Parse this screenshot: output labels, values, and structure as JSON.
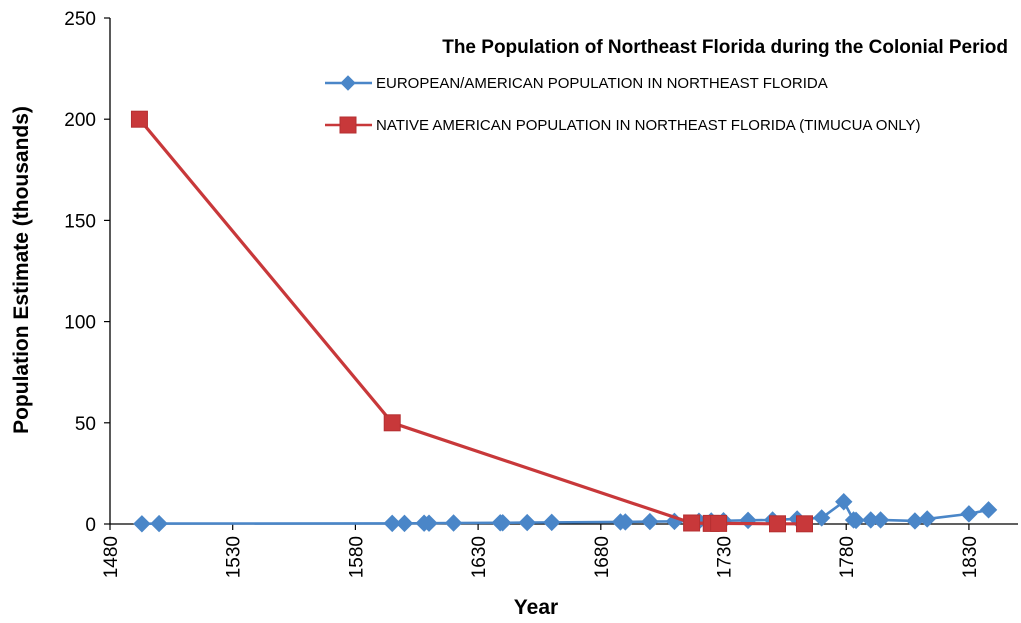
{
  "chart_data": {
    "type": "line",
    "title": "The Population of Northeast Florida during the Colonial Period",
    "xlabel": "Year",
    "ylabel": "Population Estimate (thousands)",
    "xlim": [
      1480,
      1850
    ],
    "ylim": [
      0,
      250
    ],
    "xticks": [
      "1480",
      "1530",
      "1580",
      "1630",
      "1680",
      "1730",
      "1780",
      "1830"
    ],
    "yticks": [
      "0",
      "50",
      "100",
      "150",
      "200",
      "250"
    ],
    "legend_position": "top-right",
    "grid": false,
    "series": [
      {
        "name": "EUROPEAN/AMERICAN POPULATION IN NORTHEAST FLORIDA",
        "color": "#4a86c8",
        "marker": "diamond",
        "points": [
          [
            1493,
            0.1
          ],
          [
            1500,
            0.2
          ],
          [
            1595,
            0.3
          ],
          [
            1600,
            0.3
          ],
          [
            1608,
            0.4
          ],
          [
            1610,
            0.4
          ],
          [
            1620,
            0.5
          ],
          [
            1639,
            0.6
          ],
          [
            1640,
            0.6
          ],
          [
            1650,
            0.7
          ],
          [
            1660,
            0.8
          ],
          [
            1688,
            1.0
          ],
          [
            1690,
            1.0
          ],
          [
            1700,
            1.2
          ],
          [
            1710,
            1.3
          ],
          [
            1720,
            1.4
          ],
          [
            1725,
            1.5
          ],
          [
            1730,
            1.6
          ],
          [
            1740,
            1.8
          ],
          [
            1750,
            2.0
          ],
          [
            1760,
            2.5
          ],
          [
            1770,
            3.0
          ],
          [
            1779,
            11
          ],
          [
            1783,
            2.0
          ],
          [
            1784,
            1.8
          ],
          [
            1790,
            2.0
          ],
          [
            1794,
            2.0
          ],
          [
            1808,
            1.5
          ],
          [
            1813,
            2.5
          ],
          [
            1830,
            5.0
          ],
          [
            1838,
            7.0
          ]
        ]
      },
      {
        "name": "NATIVE AMERICAN POPULATION IN NORTHEAST FLORIDA (TIMUCUA ONLY)",
        "color": "#c8383a",
        "marker": "square",
        "points": [
          [
            1492,
            200
          ],
          [
            1595,
            50
          ],
          [
            1717,
            0.5
          ],
          [
            1725,
            0.3
          ],
          [
            1728,
            0.3
          ],
          [
            1752,
            0.1
          ],
          [
            1763,
            0.1
          ]
        ]
      }
    ]
  }
}
